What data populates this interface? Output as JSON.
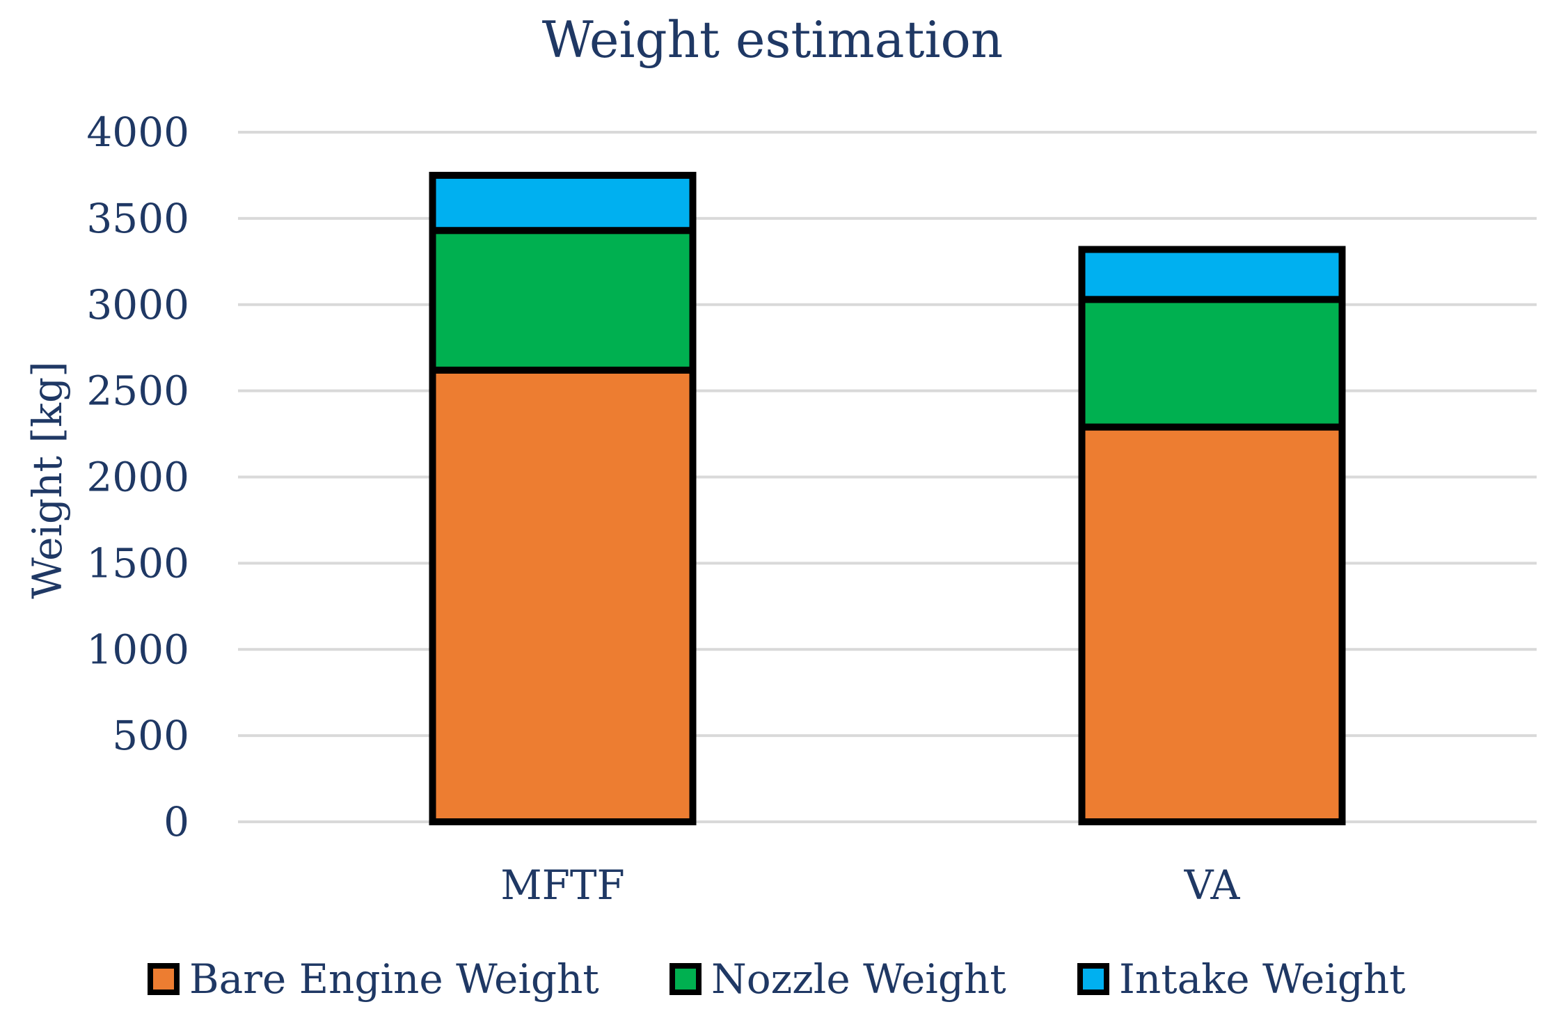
{
  "chart_data": {
    "type": "bar",
    "stacked": true,
    "title": "Weight estimation",
    "xlabel": "",
    "ylabel": "Weight [kg]",
    "ylim": [
      0,
      4000
    ],
    "yticks": [
      0,
      500,
      1000,
      1500,
      2000,
      2500,
      3000,
      3500,
      4000
    ],
    "categories": [
      "MFTF",
      "VA"
    ],
    "series": [
      {
        "name": "Bare Engine Weight",
        "values": [
          2620,
          2290
        ],
        "color": "#ED7D31"
      },
      {
        "name": "Nozzle Weight",
        "values": [
          810,
          740
        ],
        "color": "#00B050"
      },
      {
        "name": "Intake Weight",
        "values": [
          320,
          290
        ],
        "color": "#00B0F0"
      }
    ],
    "grid": true,
    "legend": "bottom",
    "text_color": "#1F3864",
    "gridline_color": "#D9D9D9",
    "bar_outline_color": "#000000"
  }
}
